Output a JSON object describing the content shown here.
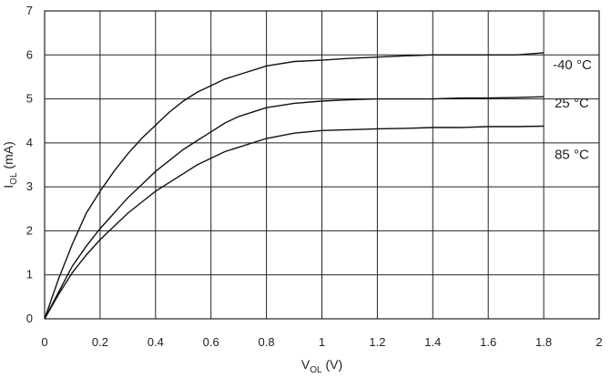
{
  "chart_data": {
    "type": "line",
    "xlabel": {
      "main": "V",
      "sub": "OL",
      "suffix": " (V)"
    },
    "ylabel": {
      "main": "I",
      "sub": "OL",
      "suffix": " (mA)"
    },
    "xlim": [
      0,
      2
    ],
    "ylim": [
      0,
      7
    ],
    "xticks": [
      "0",
      "0.2",
      "0.4",
      "0.6",
      "0.8",
      "1",
      "1.2",
      "1.4",
      "1.6",
      "1.8",
      "2"
    ],
    "yticks": [
      "0",
      "1",
      "2",
      "3",
      "4",
      "5",
      "6",
      "7"
    ],
    "grid": true,
    "series": [
      {
        "name": "-40 °C",
        "x": [
          0,
          0.05,
          0.1,
          0.15,
          0.2,
          0.25,
          0.3,
          0.35,
          0.4,
          0.45,
          0.5,
          0.55,
          0.6,
          0.65,
          0.7,
          0.8,
          0.9,
          1.0,
          1.1,
          1.2,
          1.3,
          1.4,
          1.5,
          1.6,
          1.7,
          1.8
        ],
        "y": [
          0,
          0.9,
          1.7,
          2.4,
          2.9,
          3.35,
          3.75,
          4.1,
          4.4,
          4.7,
          4.95,
          5.15,
          5.3,
          5.45,
          5.55,
          5.75,
          5.85,
          5.88,
          5.92,
          5.95,
          5.98,
          6.0,
          6.0,
          6.0,
          6.0,
          6.05
        ]
      },
      {
        "name": "25 °C",
        "x": [
          0,
          0.05,
          0.1,
          0.15,
          0.2,
          0.25,
          0.3,
          0.35,
          0.4,
          0.45,
          0.5,
          0.55,
          0.6,
          0.65,
          0.7,
          0.8,
          0.9,
          1.0,
          1.1,
          1.2,
          1.3,
          1.4,
          1.5,
          1.6,
          1.7,
          1.8
        ],
        "y": [
          0,
          0.6,
          1.2,
          1.65,
          2.05,
          2.4,
          2.75,
          3.05,
          3.35,
          3.6,
          3.85,
          4.05,
          4.25,
          4.45,
          4.6,
          4.8,
          4.9,
          4.95,
          4.98,
          5.0,
          5.0,
          5.0,
          5.02,
          5.02,
          5.03,
          5.05
        ]
      },
      {
        "name": "85 °C",
        "x": [
          0,
          0.05,
          0.1,
          0.15,
          0.2,
          0.25,
          0.3,
          0.35,
          0.4,
          0.45,
          0.5,
          0.55,
          0.6,
          0.65,
          0.7,
          0.8,
          0.9,
          1.0,
          1.1,
          1.2,
          1.3,
          1.4,
          1.5,
          1.6,
          1.7,
          1.8
        ],
        "y": [
          0,
          0.55,
          1.05,
          1.45,
          1.8,
          2.1,
          2.4,
          2.65,
          2.9,
          3.1,
          3.3,
          3.5,
          3.65,
          3.8,
          3.9,
          4.1,
          4.22,
          4.28,
          4.3,
          4.32,
          4.33,
          4.35,
          4.35,
          4.37,
          4.37,
          4.38
        ]
      }
    ]
  }
}
